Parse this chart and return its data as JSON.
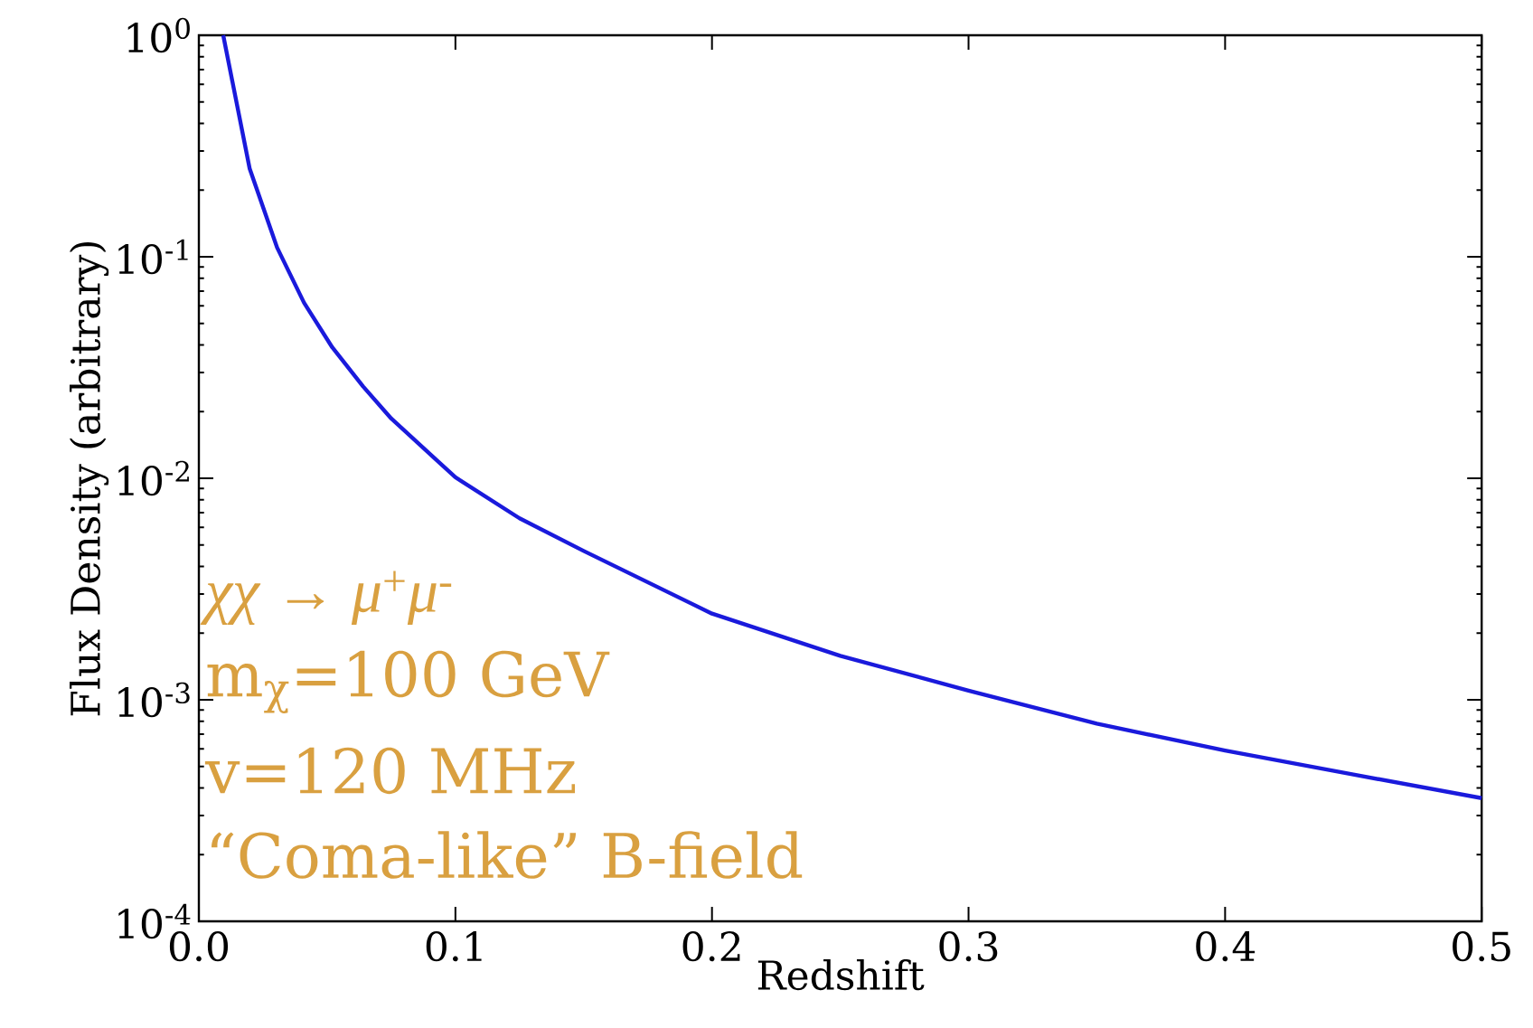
{
  "chart_data": {
    "type": "line",
    "xlabel": "Redshift",
    "ylabel": "Flux Density (arbitrary)",
    "log": "y",
    "x": [
      0.0095,
      0.0198,
      0.0305,
      0.041,
      0.052,
      0.064,
      0.075,
      0.1,
      0.125,
      0.15,
      0.2,
      0.25,
      0.3,
      0.35,
      0.4,
      0.45,
      0.5
    ],
    "series": [
      {
        "color": "#1a1adc",
        "values": [
          1.0,
          0.25,
          0.11,
          0.062,
          0.039,
          0.026,
          0.0186,
          0.0101,
          0.0066,
          0.0047,
          0.00245,
          0.00158,
          0.0011,
          0.00078,
          0.00059,
          0.00046,
          0.00036
        ]
      }
    ],
    "xlim": [
      0.0,
      0.5
    ],
    "ylim": [
      0.0001,
      1
    ],
    "xticks": [
      {
        "value": 0.0,
        "label": "0.0"
      },
      0.1,
      0.2,
      0.3,
      0.4,
      0.5
    ],
    "yticks": [
      {
        "value": 0.0001,
        "label": "10$^{-4}$"
      },
      {
        "value": 0.001,
        "label": "10$^{-3}$"
      },
      {
        "value": 0.01,
        "label": "10$^{-2}$"
      },
      {
        "value": 0.1,
        "label": "10$^{-1}$"
      },
      {
        "value": 1,
        "label": "10$^{0}$"
      }
    ],
    "annotations": [
      "*χχ → μ*$^{+}$*μ*$^{-}$",
      "m$_{χ}$=100 GeV",
      "v=120 MHz",
      "“Coma-like” B-field"
    ]
  }
}
